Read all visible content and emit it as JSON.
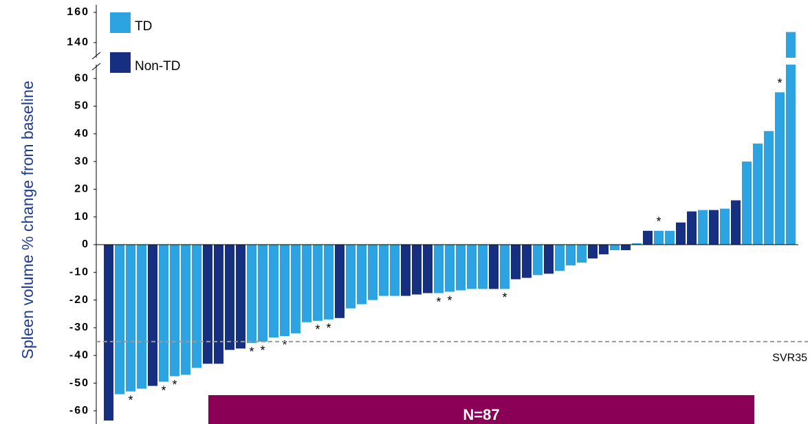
{
  "chart_data": {
    "type": "bar",
    "y_label": "Spleen volume % change from baseline",
    "series": [
      {
        "name": "TD",
        "color": "#2ea3e2",
        "values": [
          null,
          -54,
          -53,
          -52,
          null,
          -49.5,
          -47.5,
          -47,
          -44.5,
          null,
          null,
          null,
          null,
          -35.5,
          -35,
          -33.5,
          -33,
          -32,
          -28,
          -27.5,
          -27,
          null,
          -23,
          -21.5,
          -20,
          -18.5,
          -18.5,
          null,
          null,
          null,
          -17.5,
          -17,
          -16.5,
          -16,
          -16,
          null,
          -16,
          null,
          null,
          -11,
          null,
          -9.5,
          -7.5,
          -6.5,
          null,
          null,
          -2,
          null,
          0.5,
          null,
          5,
          5,
          null,
          null,
          12.5,
          null,
          13,
          null,
          30,
          36.5,
          41,
          55,
          147
        ]
      },
      {
        "name": "Non-TD",
        "color": "#172f80",
        "values": [
          -63.5,
          null,
          null,
          null,
          -51,
          null,
          null,
          null,
          null,
          -43,
          -43,
          -38,
          -37.5,
          null,
          null,
          null,
          null,
          null,
          null,
          null,
          null,
          -26.5,
          null,
          null,
          null,
          null,
          null,
          -18.5,
          -18,
          -17.5,
          null,
          null,
          null,
          null,
          null,
          -16,
          null,
          -12.5,
          -12,
          null,
          -10.5,
          null,
          null,
          null,
          -5,
          -3.5,
          null,
          -2,
          null,
          5,
          null,
          null,
          8,
          12,
          null,
          12.5,
          null,
          16,
          null,
          null,
          null,
          null,
          null
        ]
      }
    ],
    "flags": [
      null,
      null,
      "*",
      null,
      null,
      "*",
      "*",
      null,
      null,
      null,
      null,
      null,
      null,
      "*",
      "*",
      null,
      "*",
      null,
      null,
      "*",
      "*",
      null,
      null,
      null,
      null,
      null,
      null,
      null,
      null,
      null,
      "*",
      "*",
      null,
      null,
      null,
      null,
      "*",
      null,
      null,
      null,
      null,
      null,
      null,
      null,
      null,
      null,
      null,
      null,
      null,
      null,
      "*",
      null,
      null,
      null,
      null,
      null,
      null,
      null,
      null,
      null,
      null,
      "*",
      null
    ],
    "ylim": [
      -65,
      165
    ],
    "axis_break": [
      65,
      130
    ],
    "yticks": [
      -60,
      -50,
      -40,
      -30,
      -20,
      -10,
      0,
      10,
      20,
      30,
      40,
      50,
      60,
      140,
      160
    ],
    "reference_line": {
      "value": -35,
      "label": "SVR35"
    },
    "banner": "N=87"
  }
}
